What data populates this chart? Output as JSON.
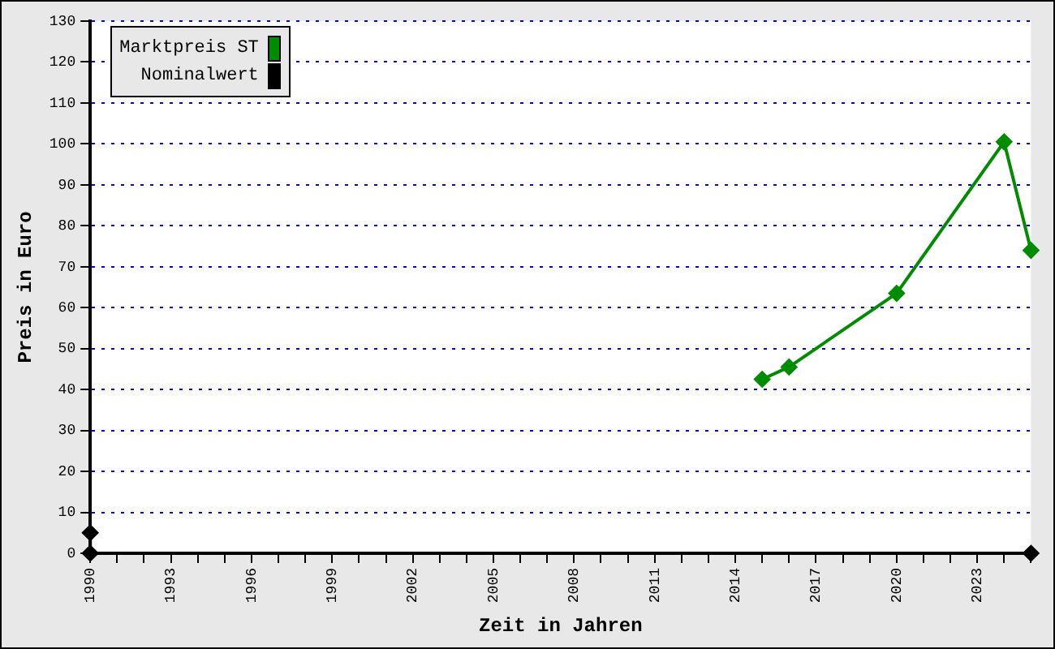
{
  "chart_data": {
    "type": "line",
    "xlabel": "Zeit in Jahren",
    "ylabel": "Preis in Euro",
    "xlim": [
      1990,
      2025
    ],
    "xticks": [
      1990,
      {
        "value": 1991,
        "label": null
      },
      {
        "value": 1992,
        "label": null
      },
      1993,
      {
        "value": 1994,
        "label": null
      },
      {
        "value": 1995,
        "label": null
      },
      1996,
      {
        "value": 1997,
        "label": null
      },
      {
        "value": 1998,
        "label": null
      },
      1999,
      {
        "value": 2000,
        "label": null
      },
      {
        "value": 2001,
        "label": null
      },
      2002,
      {
        "value": 2003,
        "label": null
      },
      {
        "value": 2004,
        "label": null
      },
      2005,
      {
        "value": 2006,
        "label": null
      },
      {
        "value": 2007,
        "label": null
      },
      2008,
      {
        "value": 2009,
        "label": null
      },
      {
        "value": 2010,
        "label": null
      },
      2011,
      {
        "value": 2012,
        "label": null
      },
      {
        "value": 2013,
        "label": null
      },
      2014,
      {
        "value": 2015,
        "label": null
      },
      {
        "value": 2016,
        "label": null
      },
      2017,
      {
        "value": 2018,
        "label": null
      },
      {
        "value": 2019,
        "label": null
      },
      2020,
      {
        "value": 2021,
        "label": null
      },
      {
        "value": 2022,
        "label": null
      },
      2023,
      {
        "value": 2024,
        "label": null
      },
      {
        "value": 2025,
        "label": null
      }
    ],
    "ylim": [
      0,
      130
    ],
    "yticks": [
      0,
      10,
      20,
      30,
      40,
      50,
      60,
      70,
      80,
      90,
      100,
      110,
      120,
      130
    ],
    "grid": "y",
    "legend": "top left",
    "marker": "diamond",
    "line_style": "solid",
    "series": [
      {
        "name": "Marktpreis ST",
        "color": "#008c00",
        "x": [
          2015,
          2016,
          2020,
          2024,
          2025
        ],
        "values": [
          42.5,
          45.5,
          63.5,
          100.5,
          74
        ]
      },
      {
        "name": "Nominalwert",
        "color": "#000000",
        "x": [
          1990,
          1990,
          2025
        ],
        "values": [
          5,
          0,
          0
        ]
      }
    ]
  }
}
